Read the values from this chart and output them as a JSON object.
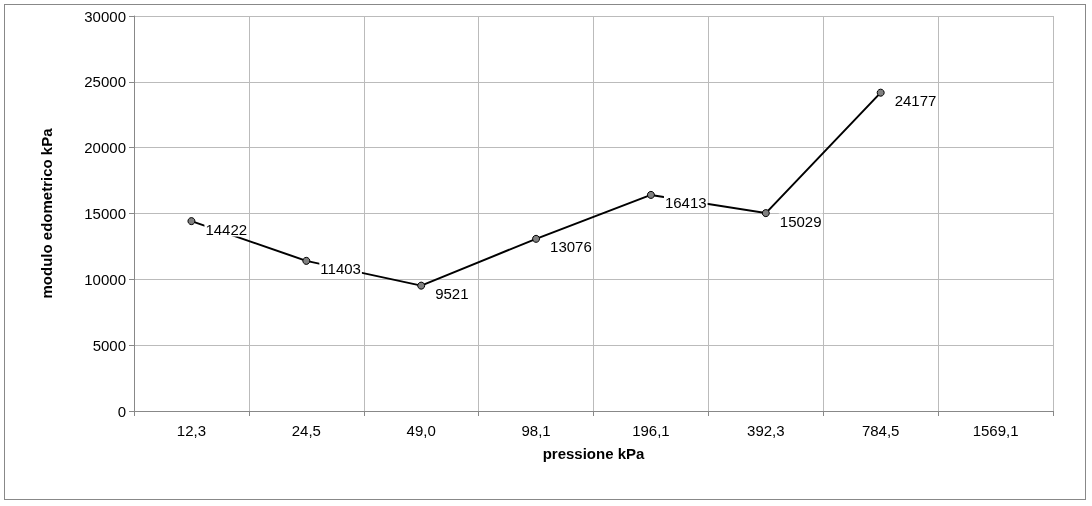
{
  "chart_data": {
    "type": "line",
    "xlabel": "pressione kPa",
    "ylabel": "modulo edometrico kPa",
    "categories": [
      "12,3",
      "24,5",
      "49,0",
      "98,1",
      "196,1",
      "392,3",
      "784,5",
      "1569,1"
    ],
    "series": [
      {
        "color": "#000000",
        "values": [
          14422,
          11403,
          9521,
          13076,
          16413,
          15029,
          24177,
          null
        ]
      }
    ],
    "ylim": [
      0,
      30000
    ],
    "yticks": [
      0,
      5000,
      10000,
      15000,
      20000,
      25000,
      30000
    ],
    "grid": true,
    "marker": "circle",
    "line_style": "solid",
    "data_labels": true
  }
}
